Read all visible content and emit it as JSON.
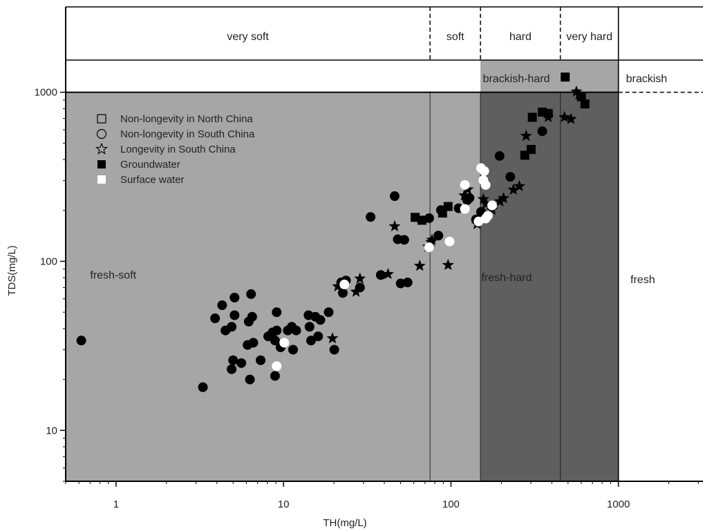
{
  "chart_data": {
    "type": "scatter",
    "xlabel": "TH(mg/L)",
    "ylabel": "TDS(mg/L)",
    "x_scale": "log",
    "y_scale": "log",
    "xlim": [
      0.5,
      3200
    ],
    "ylim": [
      5,
      1550
    ],
    "top_band_max": 3200,
    "x_ticks": [
      {
        "value": 1,
        "label": "1"
      },
      {
        "value": 10,
        "label": "10"
      },
      {
        "value": 100,
        "label": "100"
      },
      {
        "value": 1000,
        "label": "1000"
      }
    ],
    "y_ticks": [
      {
        "value": 10,
        "label": "10"
      },
      {
        "value": 100,
        "label": "100"
      },
      {
        "value": 1000,
        "label": "1000"
      }
    ],
    "hardness_classes": [
      {
        "label": "very soft",
        "from": 0.5,
        "to": 75
      },
      {
        "label": "soft",
        "from": 75,
        "to": 150
      },
      {
        "label": "hard",
        "from": 150,
        "to": 450
      },
      {
        "label": "very hard",
        "from": 450,
        "to": 1000
      }
    ],
    "hardness_boundaries": [
      75,
      150,
      450
    ],
    "tds_boundary": 1000,
    "regions": [
      {
        "label": "fresh-soft",
        "x": [
          0.5,
          150
        ],
        "y": [
          5,
          1000
        ],
        "color": "#a6a6a6"
      },
      {
        "label": "fresh-hard",
        "x": [
          150,
          1000
        ],
        "y": [
          5,
          1000
        ],
        "color": "#5f5f5f"
      },
      {
        "label": "brackish-hard",
        "x": [
          150,
          1000
        ],
        "y": [
          1000,
          1550
        ],
        "color": "#a6a6a6"
      },
      {
        "label": "fresh",
        "x": [
          1000,
          3200
        ],
        "y": [
          5,
          1000
        ],
        "color": "#ffffff"
      },
      {
        "label": "brackish",
        "x": [
          1000,
          3200
        ],
        "y": [
          1000,
          1550
        ],
        "color": "#ffffff"
      }
    ],
    "region_label_anchors": [
      {
        "label": "fresh-soft",
        "x": 0.7,
        "y": 83
      },
      {
        "label": "fresh-hard",
        "x": 152,
        "y": 80
      },
      {
        "label": "brackish-hard",
        "x": 155,
        "y": 1200
      },
      {
        "label": "fresh",
        "x": 1180,
        "y": 78
      },
      {
        "label": "brackish",
        "x": 1110,
        "y": 1200
      }
    ],
    "legend": [
      {
        "label": "Non-longevity in North China",
        "marker": "square-open"
      },
      {
        "label": "Non-longevity in South China",
        "marker": "circle-open"
      },
      {
        "label": "Longevity in South China",
        "marker": "star-open"
      },
      {
        "label": "Groundwater",
        "marker": "square-filled"
      },
      {
        "label": "Surface water",
        "marker": "square-white"
      }
    ],
    "legend_position": "top-left",
    "series": [
      {
        "name": "Non-longevity in South China",
        "marker": "circle",
        "points": [
          [
            0.62,
            34
          ],
          [
            3.3,
            18
          ],
          [
            3.9,
            46
          ],
          [
            4.3,
            55
          ],
          [
            4.5,
            39
          ],
          [
            4.9,
            41
          ],
          [
            5.1,
            48
          ],
          [
            5.1,
            61
          ],
          [
            4.9,
            23
          ],
          [
            5.0,
            26
          ],
          [
            5.6,
            25
          ],
          [
            6.1,
            32
          ],
          [
            6.2,
            44
          ],
          [
            6.4,
            64
          ],
          [
            6.5,
            47
          ],
          [
            6.3,
            20
          ],
          [
            6.6,
            33
          ],
          [
            7.3,
            26
          ],
          [
            8.1,
            36
          ],
          [
            8.6,
            38
          ],
          [
            8.9,
            34
          ],
          [
            9.1,
            39
          ],
          [
            9.1,
            50
          ],
          [
            8.9,
            21
          ],
          [
            9.6,
            31
          ],
          [
            10.6,
            39
          ],
          [
            11.2,
            41
          ],
          [
            11.4,
            30
          ],
          [
            11.9,
            39
          ],
          [
            14.1,
            48
          ],
          [
            14.3,
            41
          ],
          [
            14.6,
            34
          ],
          [
            15.5,
            47
          ],
          [
            16.1,
            36
          ],
          [
            16.6,
            45
          ],
          [
            18.6,
            50
          ],
          [
            20.1,
            30
          ],
          [
            22.1,
            75
          ],
          [
            22.6,
            65
          ],
          [
            23.6,
            77
          ],
          [
            28.6,
            70
          ],
          [
            33.1,
            183
          ],
          [
            38.1,
            83
          ],
          [
            46.1,
            243
          ],
          [
            48.1,
            135
          ],
          [
            50.1,
            74
          ],
          [
            52.6,
            134
          ],
          [
            55.1,
            75
          ],
          [
            74.1,
            180
          ],
          [
            84.1,
            142
          ],
          [
            87.1,
            201
          ],
          [
            111.1,
            206
          ],
          [
            125.1,
            230
          ],
          [
            129.1,
            237
          ],
          [
            141.1,
            177
          ],
          [
            151.1,
            196
          ],
          [
            195.1,
            420
          ],
          [
            226.1,
            316
          ],
          [
            351.1,
            588
          ]
        ]
      },
      {
        "name": "Longevity in South China",
        "marker": "star",
        "points": [
          [
            19.6,
            35
          ],
          [
            21.1,
            71
          ],
          [
            27.1,
            66
          ],
          [
            28.6,
            79
          ],
          [
            42.1,
            84
          ],
          [
            46.1,
            161
          ],
          [
            65.1,
            94
          ],
          [
            73.1,
            122
          ],
          [
            76.1,
            130
          ],
          [
            77.1,
            134
          ],
          [
            96.1,
            95
          ],
          [
            120.1,
            245
          ],
          [
            126.1,
            266
          ],
          [
            143.1,
            166
          ],
          [
            156.1,
            233
          ],
          [
            162.1,
            219
          ],
          [
            176.1,
            202
          ],
          [
            196.1,
            226
          ],
          [
            206.1,
            236
          ],
          [
            236.1,
            265
          ],
          [
            256.1,
            278
          ],
          [
            281.1,
            552
          ],
          [
            381.1,
            713
          ],
          [
            476.1,
            712
          ],
          [
            521.1,
            694
          ],
          [
            561.1,
            1008
          ],
          [
            581.1,
            966
          ]
        ]
      },
      {
        "name": "Groundwater",
        "marker": "square",
        "points": [
          [
            61.1,
            182
          ],
          [
            67.1,
            175
          ],
          [
            89.1,
            193
          ],
          [
            96.1,
            211
          ],
          [
            276.1,
            424
          ],
          [
            301.1,
            459
          ],
          [
            306.1,
            711
          ],
          [
            351.1,
            763
          ],
          [
            381.1,
            749
          ],
          [
            481.1,
            1230
          ],
          [
            601.1,
            941
          ],
          [
            631.1,
            853
          ]
        ]
      },
      {
        "name": "Surface water",
        "marker": "white",
        "points": [
          [
            9.1,
            24
          ],
          [
            10.1,
            33
          ],
          [
            23.1,
            73
          ],
          [
            74.1,
            121
          ],
          [
            98.1,
            131
          ],
          [
            121.1,
            283
          ],
          [
            121.1,
            204
          ],
          [
            146.1,
            172
          ],
          [
            151.1,
            356
          ],
          [
            156.1,
            302
          ],
          [
            161.1,
            283
          ],
          [
            158.1,
            342
          ],
          [
            166.1,
            186
          ],
          [
            161.1,
            179
          ],
          [
            176.1,
            214
          ]
        ]
      }
    ]
  }
}
